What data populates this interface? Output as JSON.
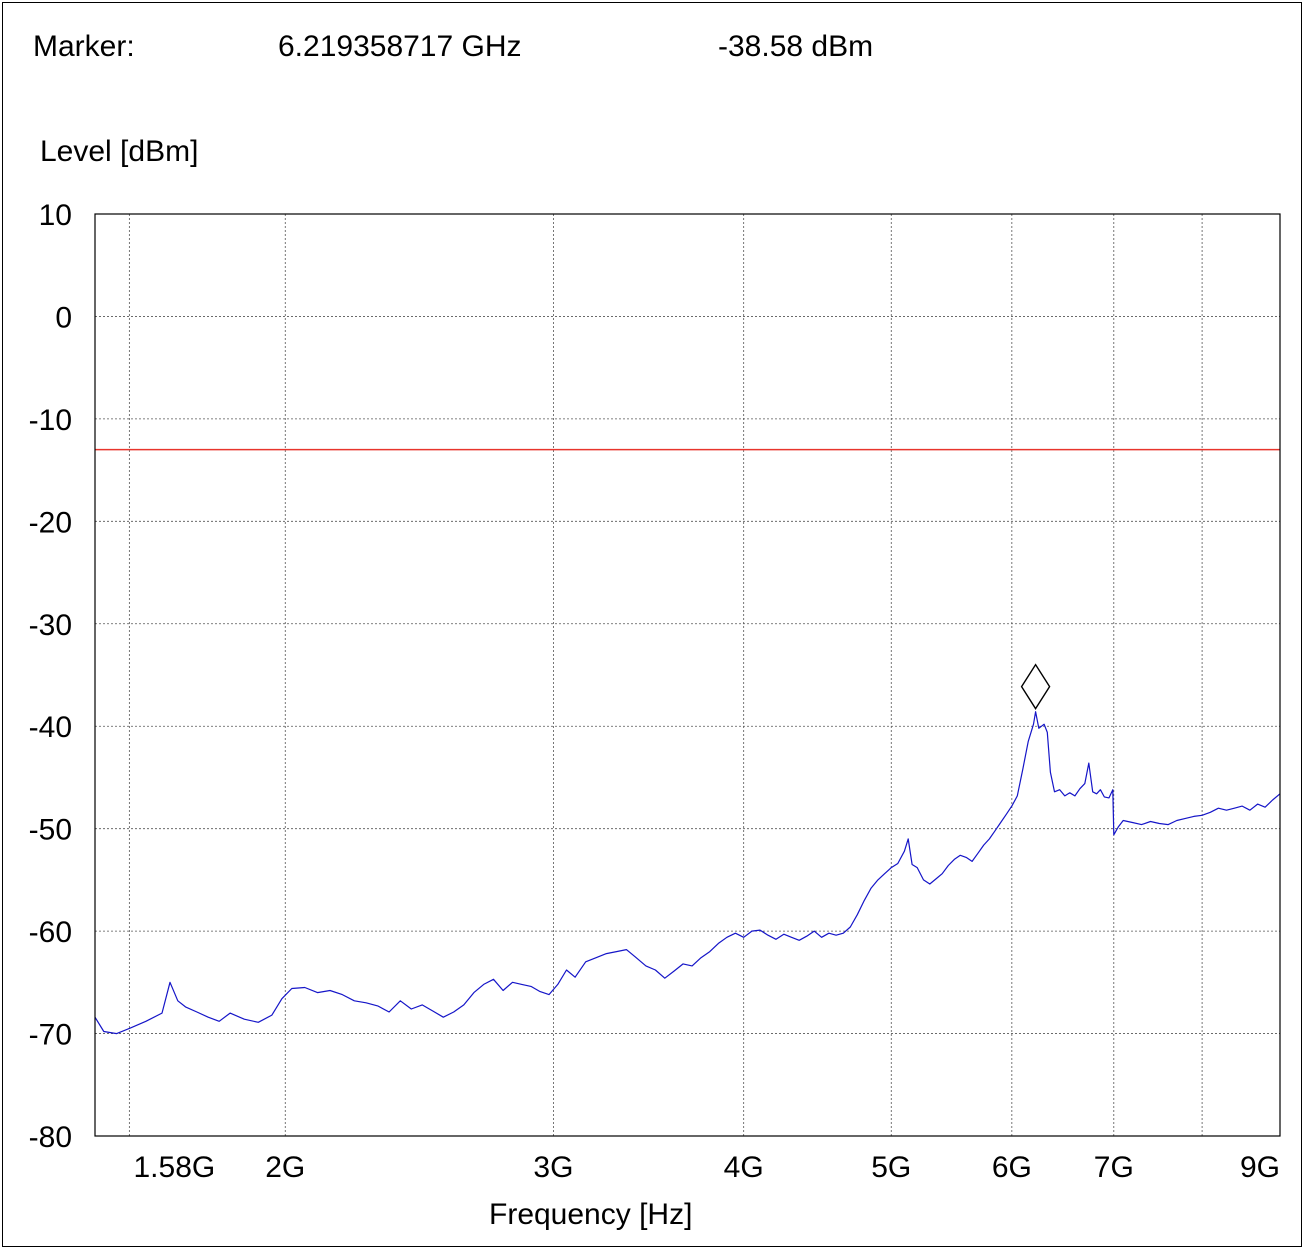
{
  "marker": {
    "label": "Marker:",
    "frequency": "6.219358717 GHz",
    "level": "-38.58 dBm"
  },
  "chart_data": {
    "type": "line",
    "title": "",
    "ylabel": "Level [dBm]",
    "xlabel": "Frequency [Hz]",
    "x_scale": "log",
    "xlim_hz": [
      1500000000,
      9000000000
    ],
    "ylim": [
      -80,
      10
    ],
    "grid": true,
    "x_ticks": [
      {
        "value": 1580000000,
        "label": "1.58G"
      },
      {
        "value": 2000000000,
        "label": "2G"
      },
      {
        "value": 3000000000,
        "label": "3G"
      },
      {
        "value": 4000000000,
        "label": "4G"
      },
      {
        "value": 5000000000,
        "label": "5G"
      },
      {
        "value": 6000000000,
        "label": "6G"
      },
      {
        "value": 7000000000,
        "label": "7G"
      },
      {
        "value": 8000000000,
        "label": ""
      },
      {
        "value": 9000000000,
        "label": "9G"
      }
    ],
    "y_ticks": [
      10,
      0,
      -10,
      -20,
      -30,
      -40,
      -50,
      -60,
      -70,
      -80
    ],
    "limit_line": {
      "level": -13,
      "color": "#e8342c"
    },
    "series": [
      {
        "color": "#1515c8",
        "points": [
          [
            1500000000.0,
            -68.4
          ],
          [
            1520000000.0,
            -69.8
          ],
          [
            1550000000.0,
            -70.0
          ],
          [
            1580000000.0,
            -69.5
          ],
          [
            1620000000.0,
            -68.8
          ],
          [
            1660000000.0,
            -68.0
          ],
          [
            1680000000.0,
            -65.0
          ],
          [
            1700000000.0,
            -66.8
          ],
          [
            1720000000.0,
            -67.4
          ],
          [
            1750000000.0,
            -67.9
          ],
          [
            1780000000.0,
            -68.4
          ],
          [
            1810000000.0,
            -68.8
          ],
          [
            1840000000.0,
            -68.0
          ],
          [
            1880000000.0,
            -68.6
          ],
          [
            1920000000.0,
            -68.9
          ],
          [
            1960000000.0,
            -68.2
          ],
          [
            1990000000.0,
            -66.6
          ],
          [
            2020000000.0,
            -65.6
          ],
          [
            2060000000.0,
            -65.5
          ],
          [
            2100000000.0,
            -66.0
          ],
          [
            2140000000.0,
            -65.8
          ],
          [
            2180000000.0,
            -66.2
          ],
          [
            2220000000.0,
            -66.8
          ],
          [
            2260000000.0,
            -67.0
          ],
          [
            2300000000.0,
            -67.3
          ],
          [
            2340000000.0,
            -67.9
          ],
          [
            2380000000.0,
            -66.8
          ],
          [
            2420000000.0,
            -67.6
          ],
          [
            2460000000.0,
            -67.2
          ],
          [
            2500000000.0,
            -67.8
          ],
          [
            2540000000.0,
            -68.4
          ],
          [
            2580000000.0,
            -67.9
          ],
          [
            2620000000.0,
            -67.2
          ],
          [
            2660000000.0,
            -66.0
          ],
          [
            2700000000.0,
            -65.2
          ],
          [
            2740000000.0,
            -64.7
          ],
          [
            2780000000.0,
            -65.8
          ],
          [
            2820000000.0,
            -65.0
          ],
          [
            2860000000.0,
            -65.2
          ],
          [
            2900000000.0,
            -65.4
          ],
          [
            2940000000.0,
            -65.9
          ],
          [
            2980000000.0,
            -66.2
          ],
          [
            3020000000.0,
            -65.2
          ],
          [
            3060000000.0,
            -63.8
          ],
          [
            3100000000.0,
            -64.5
          ],
          [
            3150000000.0,
            -63.0
          ],
          [
            3200000000.0,
            -62.6
          ],
          [
            3250000000.0,
            -62.2
          ],
          [
            3300000000.0,
            -62.0
          ],
          [
            3350000000.0,
            -61.8
          ],
          [
            3400000000.0,
            -62.6
          ],
          [
            3450000000.0,
            -63.4
          ],
          [
            3500000000.0,
            -63.8
          ],
          [
            3550000000.0,
            -64.6
          ],
          [
            3600000000.0,
            -63.9
          ],
          [
            3650000000.0,
            -63.2
          ],
          [
            3700000000.0,
            -63.4
          ],
          [
            3750000000.0,
            -62.6
          ],
          [
            3800000000.0,
            -62.0
          ],
          [
            3850000000.0,
            -61.2
          ],
          [
            3900000000.0,
            -60.6
          ],
          [
            3950000000.0,
            -60.2
          ],
          [
            4000000000.0,
            -60.6
          ],
          [
            4050000000.0,
            -60.0
          ],
          [
            4100000000.0,
            -59.9
          ],
          [
            4150000000.0,
            -60.4
          ],
          [
            4200000000.0,
            -60.8
          ],
          [
            4250000000.0,
            -60.3
          ],
          [
            4300000000.0,
            -60.6
          ],
          [
            4350000000.0,
            -60.9
          ],
          [
            4400000000.0,
            -60.5
          ],
          [
            4450000000.0,
            -60.0
          ],
          [
            4500000000.0,
            -60.6
          ],
          [
            4550000000.0,
            -60.2
          ],
          [
            4600000000.0,
            -60.4
          ],
          [
            4650000000.0,
            -60.2
          ],
          [
            4700000000.0,
            -59.6
          ],
          [
            4750000000.0,
            -58.4
          ],
          [
            4800000000.0,
            -57.0
          ],
          [
            4850000000.0,
            -55.8
          ],
          [
            4900000000.0,
            -55.0
          ],
          [
            4950000000.0,
            -54.4
          ],
          [
            5000000000.0,
            -53.8
          ],
          [
            5050000000.0,
            -53.4
          ],
          [
            5100000000.0,
            -52.2
          ],
          [
            5130000000.0,
            -51.0
          ],
          [
            5160000000.0,
            -53.5
          ],
          [
            5200000000.0,
            -53.8
          ],
          [
            5250000000.0,
            -55.0
          ],
          [
            5300000000.0,
            -55.4
          ],
          [
            5350000000.0,
            -54.9
          ],
          [
            5400000000.0,
            -54.4
          ],
          [
            5450000000.0,
            -53.6
          ],
          [
            5500000000.0,
            -53.0
          ],
          [
            5550000000.0,
            -52.6
          ],
          [
            5600000000.0,
            -52.8
          ],
          [
            5650000000.0,
            -53.2
          ],
          [
            5700000000.0,
            -52.4
          ],
          [
            5750000000.0,
            -51.6
          ],
          [
            5800000000.0,
            -51.0
          ],
          [
            5850000000.0,
            -50.2
          ],
          [
            5900000000.0,
            -49.4
          ],
          [
            5950000000.0,
            -48.6
          ],
          [
            6000000000.0,
            -47.8
          ],
          [
            6050000000.0,
            -46.8
          ],
          [
            6100000000.0,
            -44.2
          ],
          [
            6150000000.0,
            -41.5
          ],
          [
            6200000000.0,
            -39.8
          ],
          [
            6219000000.0,
            -38.58
          ],
          [
            6250000000.0,
            -40.2
          ],
          [
            6300000000.0,
            -39.8
          ],
          [
            6330000000.0,
            -40.6
          ],
          [
            6360000000.0,
            -44.5
          ],
          [
            6400000000.0,
            -46.4
          ],
          [
            6450000000.0,
            -46.2
          ],
          [
            6500000000.0,
            -46.8
          ],
          [
            6550000000.0,
            -46.5
          ],
          [
            6600000000.0,
            -46.8
          ],
          [
            6650000000.0,
            -46.1
          ],
          [
            6700000000.0,
            -45.6
          ],
          [
            6740000000.0,
            -43.6
          ],
          [
            6780000000.0,
            -46.4
          ],
          [
            6820000000.0,
            -46.6
          ],
          [
            6860000000.0,
            -46.2
          ],
          [
            6900000000.0,
            -46.9
          ],
          [
            6950000000.0,
            -47.0
          ],
          [
            6990000000.0,
            -46.2
          ],
          [
            7000000000.0,
            -50.6
          ],
          [
            7050000000.0,
            -49.8
          ],
          [
            7100000000.0,
            -49.2
          ],
          [
            7200000000.0,
            -49.4
          ],
          [
            7300000000.0,
            -49.6
          ],
          [
            7400000000.0,
            -49.3
          ],
          [
            7500000000.0,
            -49.5
          ],
          [
            7600000000.0,
            -49.6
          ],
          [
            7700000000.0,
            -49.2
          ],
          [
            7800000000.0,
            -49.0
          ],
          [
            7900000000.0,
            -48.8
          ],
          [
            8000000000.0,
            -48.7
          ],
          [
            8100000000.0,
            -48.4
          ],
          [
            8200000000.0,
            -48.0
          ],
          [
            8300000000.0,
            -48.2
          ],
          [
            8400000000.0,
            -48.0
          ],
          [
            8500000000.0,
            -47.8
          ],
          [
            8600000000.0,
            -48.2
          ],
          [
            8700000000.0,
            -47.6
          ],
          [
            8800000000.0,
            -47.9
          ],
          [
            8900000000.0,
            -47.2
          ],
          [
            9000000000.0,
            -46.6
          ]
        ]
      }
    ],
    "marker_point": {
      "x": 6219358717,
      "y": -38.58
    }
  }
}
